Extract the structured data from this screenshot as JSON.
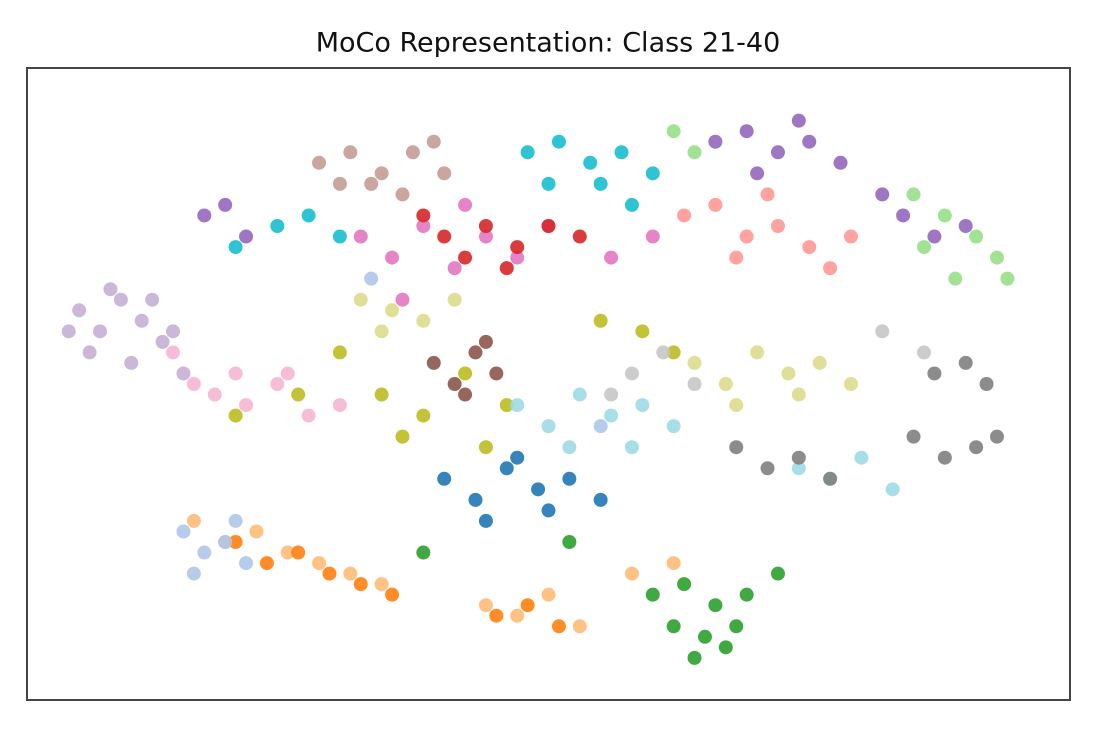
{
  "chart_data": {
    "type": "scatter",
    "title": "MoCo Representation: Class 21-40",
    "xlim": [
      0,
      100
    ],
    "ylim": [
      0,
      60
    ],
    "series": [
      {
        "color": "#c5b0d5",
        "x": [
          5,
          7,
          9,
          11,
          13,
          6,
          10,
          14,
          8,
          12,
          4,
          15
        ],
        "y": [
          37,
          35,
          38,
          36,
          34,
          33,
          32,
          35,
          39,
          38,
          35,
          31
        ]
      },
      {
        "color": "#9467bd",
        "x": [
          66,
          69,
          72,
          75,
          78,
          70,
          74,
          84,
          87,
          90,
          82,
          19,
          17,
          21
        ],
        "y": [
          53,
          54,
          52,
          53,
          51,
          50,
          55,
          46,
          44,
          45,
          48,
          47,
          46,
          44
        ]
      },
      {
        "color": "#98df8a",
        "x": [
          85,
          88,
          91,
          93,
          89,
          86,
          62,
          64,
          94
        ],
        "y": [
          48,
          46,
          44,
          42,
          40,
          43,
          54,
          52,
          40
        ]
      },
      {
        "color": "#ff9896",
        "x": [
          63,
          66,
          69,
          72,
          75,
          68,
          71,
          77,
          79
        ],
        "y": [
          46,
          47,
          44,
          45,
          43,
          42,
          48,
          41,
          44
        ]
      },
      {
        "color": "#c49c94",
        "x": [
          28,
          31,
          34,
          37,
          40,
          33,
          36,
          30,
          39
        ],
        "y": [
          51,
          52,
          50,
          52,
          50,
          49,
          48,
          49,
          53
        ]
      },
      {
        "color": "#e377c2",
        "x": [
          32,
          35,
          38,
          41,
          44,
          47,
          50,
          36,
          42,
          56,
          60
        ],
        "y": [
          44,
          42,
          45,
          41,
          44,
          42,
          45,
          38,
          47,
          42,
          44
        ]
      },
      {
        "color": "#17becf",
        "x": [
          48,
          51,
          54,
          57,
          60,
          50,
          55,
          24,
          27,
          30,
          20,
          58
        ],
        "y": [
          52,
          53,
          51,
          52,
          50,
          49,
          49,
          45,
          46,
          44,
          43,
          47
        ]
      },
      {
        "color": "#d62728",
        "x": [
          40,
          44,
          47,
          50,
          53,
          42,
          46,
          38
        ],
        "y": [
          44,
          45,
          43,
          45,
          44,
          42,
          41,
          46
        ]
      },
      {
        "color": "#dbdb8d",
        "x": [
          64,
          67,
          70,
          73,
          76,
          79,
          68,
          74,
          32,
          35,
          38,
          41,
          34
        ],
        "y": [
          32,
          30,
          33,
          31,
          32,
          30,
          28,
          29,
          38,
          37,
          36,
          38,
          35
        ]
      },
      {
        "color": "#bcbd22",
        "x": [
          30,
          34,
          38,
          42,
          46,
          36,
          44,
          26,
          55,
          59,
          62,
          20
        ],
        "y": [
          33,
          29,
          27,
          31,
          28,
          25,
          24,
          29,
          36,
          35,
          33,
          27
        ]
      },
      {
        "color": "#8c564b",
        "x": [
          39,
          41,
          43,
          45,
          42,
          44
        ],
        "y": [
          32,
          30,
          33,
          31,
          29,
          34
        ]
      },
      {
        "color": "#9edae5",
        "x": [
          47,
          50,
          53,
          56,
          59,
          62,
          52,
          58,
          74,
          77,
          80,
          83
        ],
        "y": [
          28,
          26,
          29,
          27,
          28,
          26,
          24,
          24,
          22,
          21,
          23,
          20
        ]
      },
      {
        "color": "#7f7f7f",
        "x": [
          85,
          88,
          91,
          93,
          87,
          90,
          92,
          68,
          71,
          74,
          77
        ],
        "y": [
          25,
          23,
          24,
          25,
          31,
          32,
          30,
          24,
          22,
          23,
          21
        ]
      },
      {
        "color": "#f7b6d2",
        "x": [
          18,
          21,
          24,
          27,
          30,
          20,
          25,
          14,
          16
        ],
        "y": [
          29,
          28,
          30,
          27,
          28,
          31,
          31,
          33,
          30
        ]
      },
      {
        "color": "#1f77b4",
        "x": [
          40,
          43,
          46,
          49,
          52,
          55,
          44,
          50,
          47
        ],
        "y": [
          21,
          19,
          22,
          20,
          21,
          19,
          17,
          18,
          23
        ]
      },
      {
        "color": "#ffbb78",
        "x": [
          16,
          19,
          22,
          25,
          28,
          31,
          34,
          44,
          47,
          50,
          53,
          58,
          62
        ],
        "y": [
          17,
          15,
          16,
          14,
          13,
          12,
          11,
          9,
          8,
          10,
          7,
          12,
          13
        ]
      },
      {
        "color": "#ff7f0e",
        "x": [
          20,
          23,
          26,
          29,
          32,
          45,
          48,
          51,
          35
        ],
        "y": [
          15,
          13,
          14,
          12,
          11,
          8,
          9,
          7,
          10
        ]
      },
      {
        "color": "#2ca02c",
        "x": [
          60,
          63,
          66,
          69,
          62,
          65,
          68,
          64,
          67,
          38,
          52,
          72
        ],
        "y": [
          10,
          11,
          9,
          10,
          7,
          6,
          7,
          4,
          5,
          14,
          15,
          12
        ]
      },
      {
        "color": "#aec7e8",
        "x": [
          15,
          17,
          19,
          21,
          16,
          20,
          33,
          55
        ],
        "y": [
          16,
          14,
          15,
          13,
          12,
          17,
          40,
          26
        ]
      },
      {
        "color": "#c7c7c7",
        "x": [
          58,
          61,
          64,
          56,
          82,
          86
        ],
        "y": [
          31,
          33,
          30,
          29,
          35,
          33
        ]
      }
    ]
  }
}
